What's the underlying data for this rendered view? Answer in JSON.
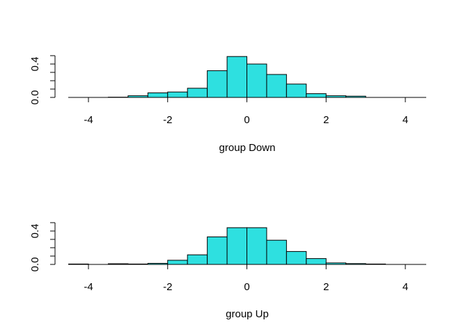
{
  "chart_data": [
    {
      "type": "bar",
      "bar_color": "#2ee0e0",
      "bin_width": 0.5,
      "xlabel": "group Down",
      "xlim": [
        -4.5,
        4.5
      ],
      "ylim": [
        0,
        0.5
      ],
      "x_ticks": [
        "-4",
        "-2",
        "0",
        "2",
        "4"
      ],
      "y_ticks": [
        "0.0",
        "0.4"
      ],
      "bins": [
        {
          "x0": -4.5,
          "x1": -4.0,
          "value": 0.0
        },
        {
          "x0": -4.0,
          "x1": -3.5,
          "value": 0.0
        },
        {
          "x0": -3.5,
          "x1": -3.0,
          "value": 0.003
        },
        {
          "x0": -3.0,
          "x1": -2.5,
          "value": 0.02
        },
        {
          "x0": -2.5,
          "x1": -2.0,
          "value": 0.055
        },
        {
          "x0": -2.0,
          "x1": -1.5,
          "value": 0.065
        },
        {
          "x0": -1.5,
          "x1": -1.0,
          "value": 0.11
        },
        {
          "x0": -1.0,
          "x1": -0.5,
          "value": 0.32
        },
        {
          "x0": -0.5,
          "x1": 0.0,
          "value": 0.49
        },
        {
          "x0": 0.0,
          "x1": 0.5,
          "value": 0.4
        },
        {
          "x0": 0.5,
          "x1": 1.0,
          "value": 0.275
        },
        {
          "x0": 1.0,
          "x1": 1.5,
          "value": 0.16
        },
        {
          "x0": 1.5,
          "x1": 2.0,
          "value": 0.045
        },
        {
          "x0": 2.0,
          "x1": 2.5,
          "value": 0.02
        },
        {
          "x0": 2.5,
          "x1": 3.0,
          "value": 0.015
        },
        {
          "x0": 3.0,
          "x1": 3.5,
          "value": 0.0
        },
        {
          "x0": 3.5,
          "x1": 4.0,
          "value": 0.0
        },
        {
          "x0": 4.0,
          "x1": 4.5,
          "value": 0.0
        }
      ]
    },
    {
      "type": "bar",
      "bar_color": "#2ee0e0",
      "bin_width": 0.5,
      "xlabel": "group Up",
      "xlim": [
        -4.5,
        4.5
      ],
      "ylim": [
        0,
        0.5
      ],
      "x_ticks": [
        "-4",
        "-2",
        "0",
        "2",
        "4"
      ],
      "y_ticks": [
        "0.0",
        "0.4"
      ],
      "bins": [
        {
          "x0": -4.5,
          "x1": -4.0,
          "value": 0.005
        },
        {
          "x0": -4.0,
          "x1": -3.5,
          "value": 0.0
        },
        {
          "x0": -3.5,
          "x1": -3.0,
          "value": 0.008
        },
        {
          "x0": -3.0,
          "x1": -2.5,
          "value": 0.005
        },
        {
          "x0": -2.5,
          "x1": -2.0,
          "value": 0.013
        },
        {
          "x0": -2.0,
          "x1": -1.5,
          "value": 0.05
        },
        {
          "x0": -1.5,
          "x1": -1.0,
          "value": 0.115
        },
        {
          "x0": -1.0,
          "x1": -0.5,
          "value": 0.33
        },
        {
          "x0": -0.5,
          "x1": 0.0,
          "value": 0.44
        },
        {
          "x0": 0.0,
          "x1": 0.5,
          "value": 0.44
        },
        {
          "x0": 0.5,
          "x1": 1.0,
          "value": 0.29
        },
        {
          "x0": 1.0,
          "x1": 1.5,
          "value": 0.155
        },
        {
          "x0": 1.5,
          "x1": 2.0,
          "value": 0.07
        },
        {
          "x0": 2.0,
          "x1": 2.5,
          "value": 0.018
        },
        {
          "x0": 2.5,
          "x1": 3.0,
          "value": 0.01
        },
        {
          "x0": 3.0,
          "x1": 3.5,
          "value": 0.005
        },
        {
          "x0": 3.5,
          "x1": 4.0,
          "value": 0.0
        },
        {
          "x0": 4.0,
          "x1": 4.5,
          "value": 0.0
        }
      ]
    }
  ]
}
